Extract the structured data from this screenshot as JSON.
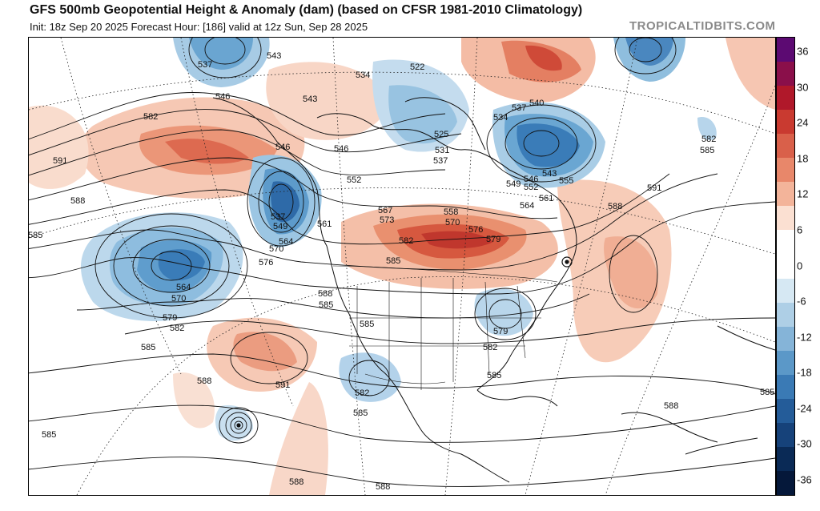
{
  "header": {
    "title": "GFS 500mb Geopotential Height & Anomaly (dam) (based on CFSR 1981-2010 Climatology)",
    "subtitle": "Init: 18z Sep 20 2025   Forecast Hour: [186]   valid at 12z Sun, Sep 28 2025",
    "watermark": "TROPICALTIDBITS.COM"
  },
  "colorbar": {
    "ticks": [
      "36",
      "30",
      "24",
      "18",
      "12",
      "6",
      "0",
      "-6",
      "-12",
      "-18",
      "-24",
      "-30",
      "-36"
    ],
    "colors": [
      "#5c0a72",
      "#8a0f4a",
      "#b0182a",
      "#c93a30",
      "#d9604a",
      "#e8876a",
      "#f3b49a",
      "#fbe0d2",
      "#ffffff",
      "#ffffff",
      "#d6e8f3",
      "#aecfe6",
      "#85b4d8",
      "#5b98c8",
      "#3a7ab5",
      "#245c99",
      "#16427a",
      "#0a2a56",
      "#05183a"
    ]
  },
  "map": {
    "contour_labels": [
      {
        "text": "537"
      },
      {
        "text": "543"
      },
      {
        "text": "546"
      },
      {
        "text": "543"
      },
      {
        "text": "534"
      },
      {
        "text": "522"
      },
      {
        "text": "537"
      },
      {
        "text": "540"
      },
      {
        "text": "534"
      },
      {
        "text": "582"
      },
      {
        "text": "585"
      },
      {
        "text": "591"
      },
      {
        "text": "582"
      },
      {
        "text": "546"
      },
      {
        "text": "546"
      },
      {
        "text": "531"
      },
      {
        "text": "537"
      },
      {
        "text": "552"
      },
      {
        "text": "525"
      },
      {
        "text": "543"
      },
      {
        "text": "549"
      },
      {
        "text": "546"
      },
      {
        "text": "552"
      },
      {
        "text": "561"
      },
      {
        "text": "564"
      },
      {
        "text": "555"
      },
      {
        "text": "588"
      },
      {
        "text": "591"
      },
      {
        "text": "588"
      },
      {
        "text": "537"
      },
      {
        "text": "549"
      },
      {
        "text": "561"
      },
      {
        "text": "567"
      },
      {
        "text": "573"
      },
      {
        "text": "558"
      },
      {
        "text": "570"
      },
      {
        "text": "576"
      },
      {
        "text": "579"
      },
      {
        "text": "582"
      },
      {
        "text": "564"
      },
      {
        "text": "570"
      },
      {
        "text": "585"
      },
      {
        "text": "576"
      },
      {
        "text": "564"
      },
      {
        "text": "570"
      },
      {
        "text": "588"
      },
      {
        "text": "585"
      },
      {
        "text": "579"
      },
      {
        "text": "582"
      },
      {
        "text": "585"
      },
      {
        "text": "579"
      },
      {
        "text": "582"
      },
      {
        "text": "585"
      },
      {
        "text": "582"
      },
      {
        "text": "588"
      },
      {
        "text": "591"
      },
      {
        "text": "585"
      },
      {
        "text": "588"
      },
      {
        "text": "585"
      },
      {
        "text": "585"
      },
      {
        "text": "588"
      },
      {
        "text": "585"
      },
      {
        "text": "588"
      },
      {
        "text": "585"
      }
    ]
  }
}
